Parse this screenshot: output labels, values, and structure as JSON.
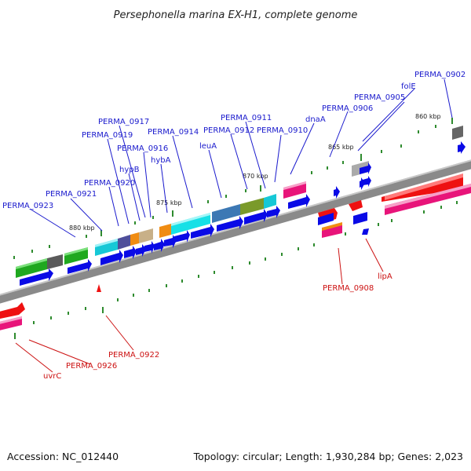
{
  "title": "Persephonella marina EX-H1, complete genome",
  "accession": "Accession: NC_012440",
  "topology": "Topology: circular; Length: 1,930,284 bp; Genes: 2,023",
  "colors": {
    "backbone": "#8c8c8c",
    "tick": "#2e8b2e",
    "forward_label": "#1a1acd",
    "reverse_label": "#cc1111",
    "cds": "#0a0ae6",
    "red_cds": "#ee1111"
  },
  "coordinates": [
    "860 kbp",
    "865 kbp",
    "870 kbp",
    "875 kbp",
    "880 kbp"
  ],
  "forward_genes": [
    "PERMA_0902",
    "folE",
    "PERMA_0905",
    "PERMA_0906",
    "dnaA",
    "PERMA_0910",
    "PERMA_0911",
    "PERMA_0912",
    "leuA",
    "PERMA_0914",
    "hybA",
    "PERMA_0916",
    "hypB",
    "PERMA_0917",
    "PERMA_0919",
    "PERMA_0920",
    "PERMA_0921",
    "PERMA_0923"
  ],
  "reverse_genes": [
    "lipA",
    "PERMA_0908",
    "PERMA_0922",
    "PERMA_0926",
    "uvrC"
  ]
}
